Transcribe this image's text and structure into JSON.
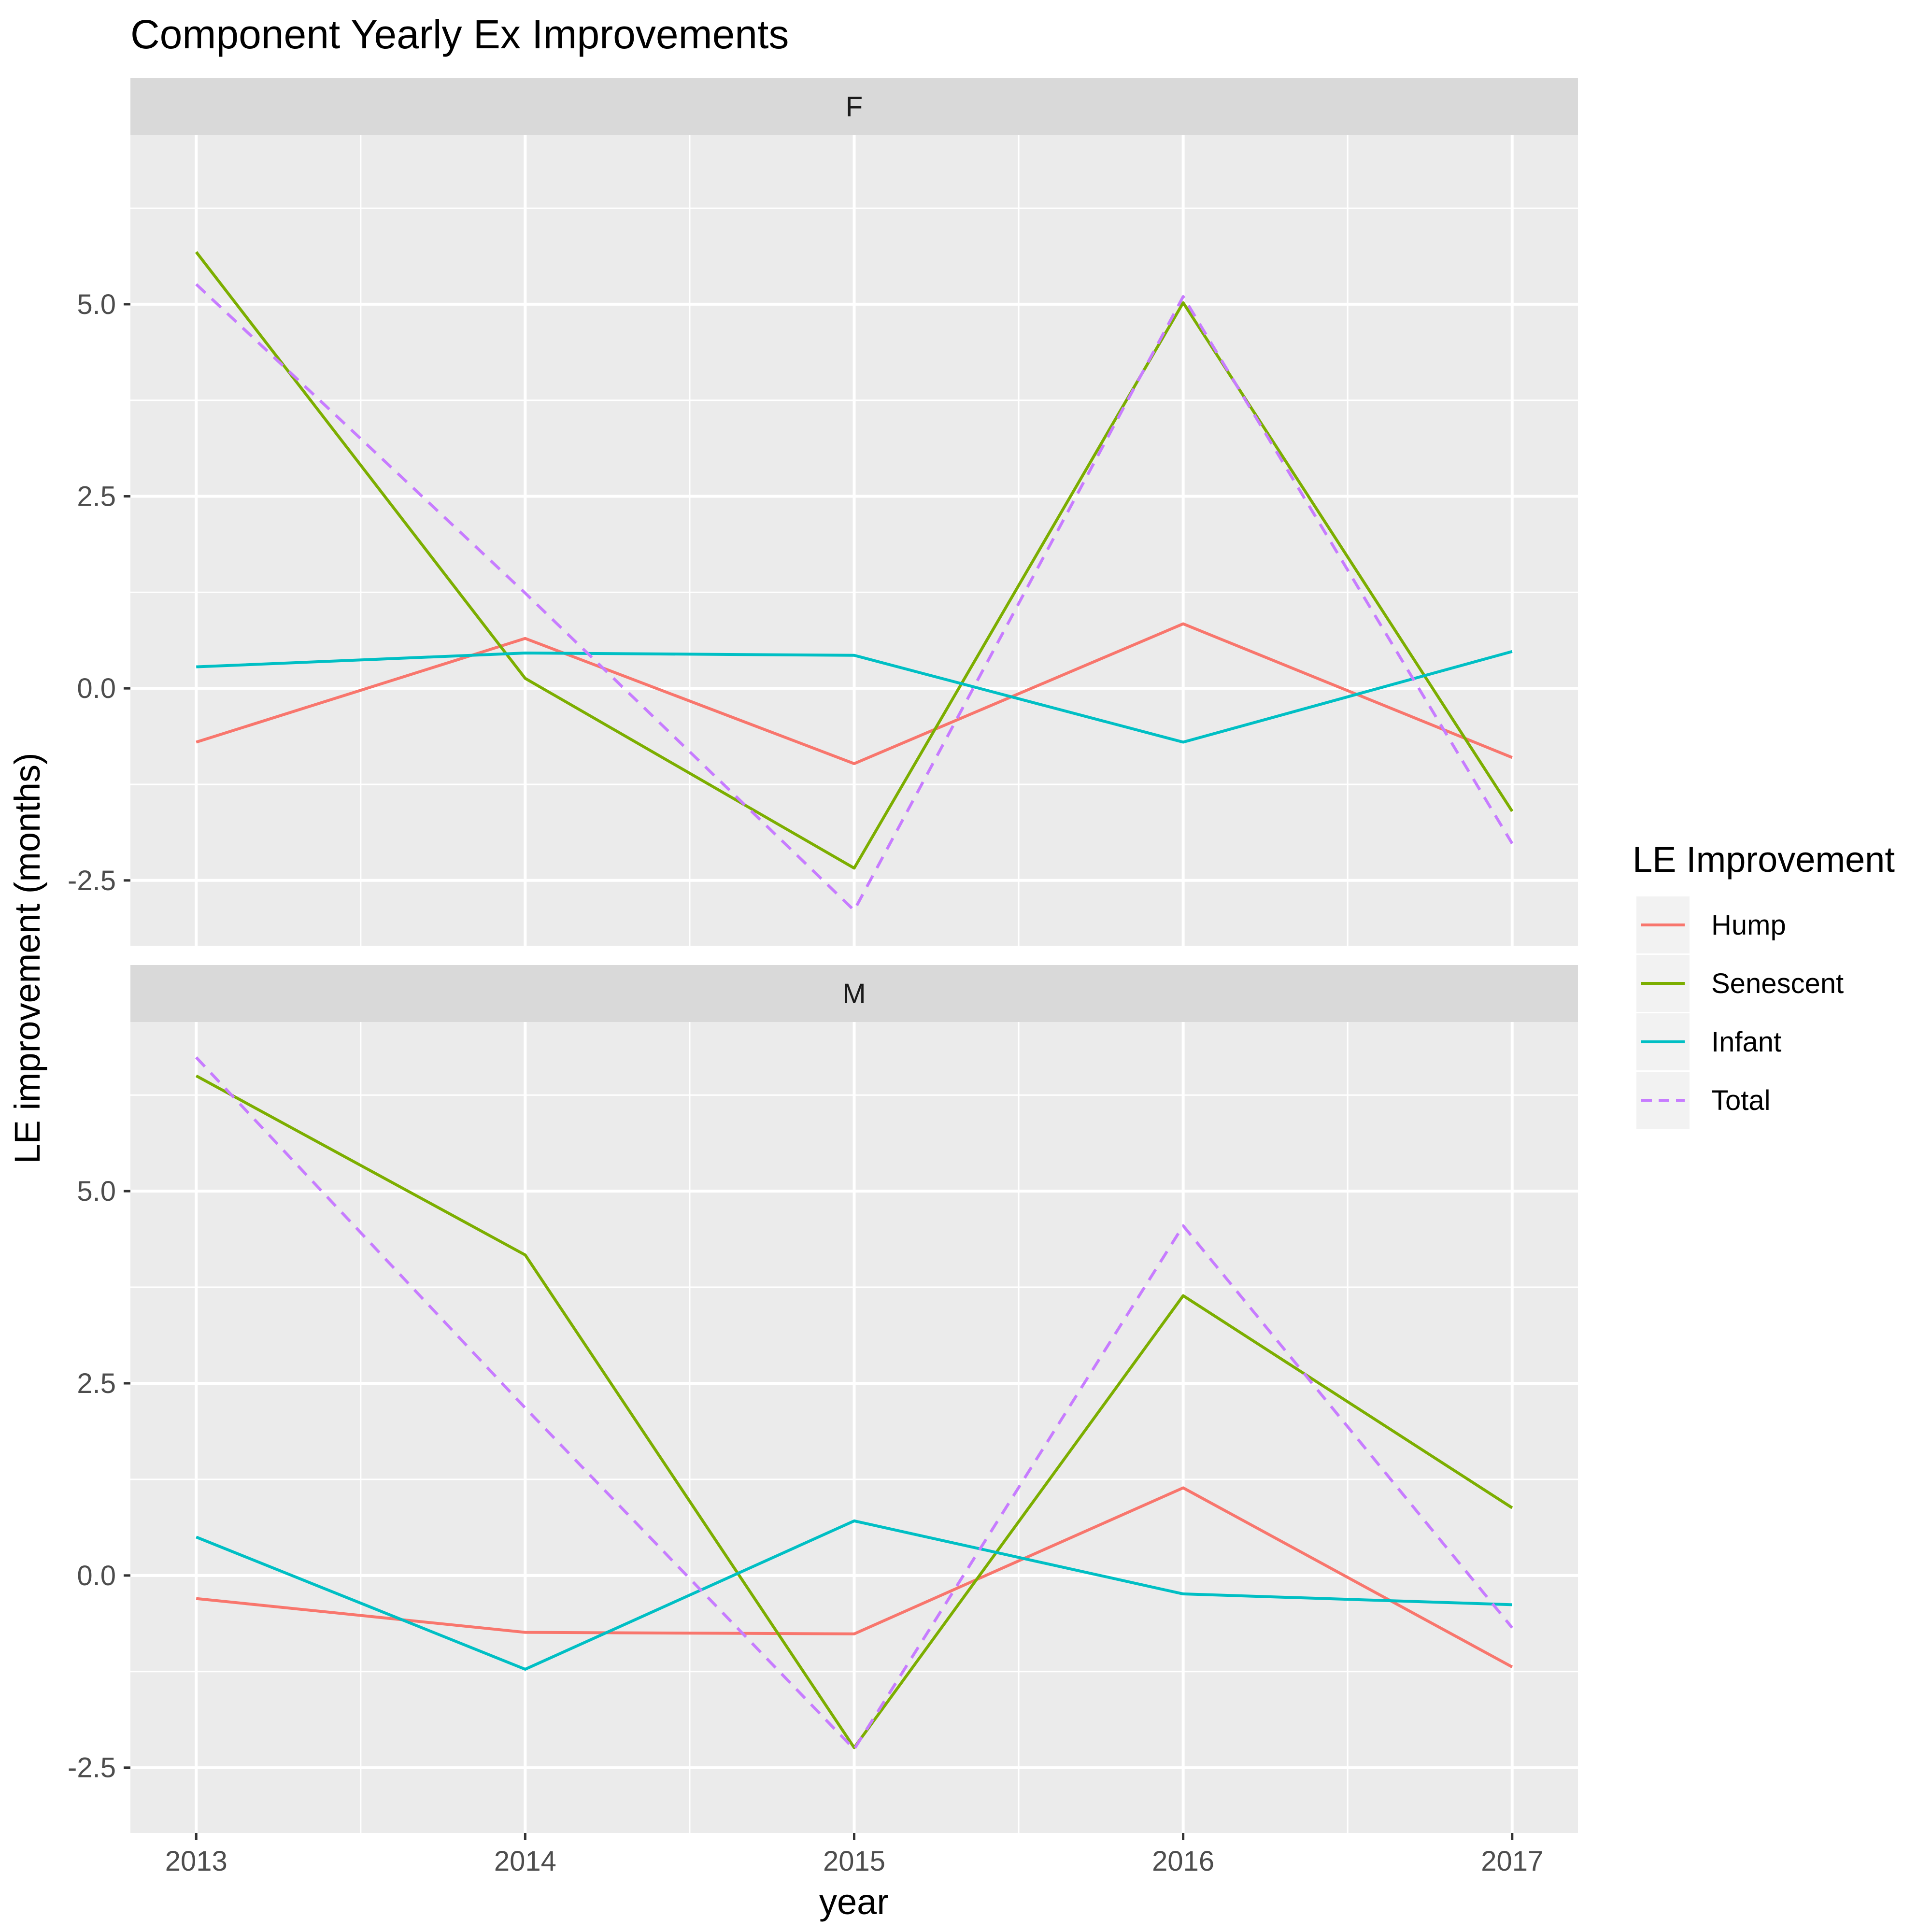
{
  "chart_data": {
    "type": "line",
    "title": "Component Yearly Ex Improvements",
    "xlabel": "year",
    "ylabel": "LE improvement (months)",
    "x": [
      2013,
      2014,
      2015,
      2016,
      2017
    ],
    "x_tick_labels": [
      "2013",
      "2014",
      "2015",
      "2016",
      "2017"
    ],
    "xlim": [
      2012.8,
      2017.2
    ],
    "y_tick_values": [
      -2.5,
      0,
      2.5,
      5
    ],
    "y_tick_labels": [
      "-2.5",
      "0.0",
      "2.5",
      "5.0"
    ],
    "grid": true,
    "legend": {
      "title": "LE Improvement",
      "placement": "right",
      "entries": [
        {
          "name": "Hump",
          "color": "#F8766D",
          "dash": false
        },
        {
          "name": "Senescent",
          "color": "#7CAE00",
          "dash": false
        },
        {
          "name": "Infant",
          "color": "#00BFC4",
          "dash": false
        },
        {
          "name": "Total",
          "color": "#C77CFF",
          "dash": true
        }
      ]
    },
    "panels": [
      {
        "label": "F",
        "ylim": [
          -3.35,
          7.2
        ],
        "series": [
          {
            "name": "Hump",
            "values": [
              -0.7,
              0.65,
              -0.98,
              0.84,
              -0.9
            ]
          },
          {
            "name": "Senescent",
            "values": [
              5.68,
              0.13,
              -2.34,
              5.02,
              -1.6
            ]
          },
          {
            "name": "Infant",
            "values": [
              0.28,
              0.46,
              0.43,
              -0.7,
              0.48
            ]
          },
          {
            "name": "Total",
            "values": [
              5.26,
              1.24,
              -2.89,
              5.1,
              -2.02
            ]
          }
        ]
      },
      {
        "label": "M",
        "ylim": [
          -3.35,
          7.2
        ],
        "series": [
          {
            "name": "Hump",
            "values": [
              -0.3,
              -0.74,
              -0.76,
              1.14,
              -1.19
            ]
          },
          {
            "name": "Senescent",
            "values": [
              6.5,
              4.17,
              -2.24,
              3.64,
              0.88
            ]
          },
          {
            "name": "Infant",
            "values": [
              0.5,
              -1.22,
              0.71,
              -0.24,
              -0.38
            ]
          },
          {
            "name": "Total",
            "values": [
              6.74,
              2.18,
              -2.26,
              4.55,
              -0.68
            ]
          }
        ]
      }
    ]
  }
}
